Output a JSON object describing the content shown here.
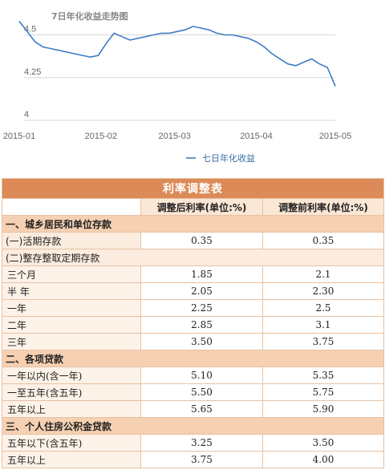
{
  "chart_data": {
    "type": "line",
    "title": "7日年化收益走势图",
    "legend": "七日年化收益",
    "legend_position": "bottom-center",
    "line_color": "#3f7cc4",
    "grid": "horizontal",
    "x_ticks": [
      "2015-01",
      "2015-02",
      "2015-03",
      "2015-04",
      "2015-05"
    ],
    "y_ticks": [
      "4",
      "4.25",
      "4.5"
    ],
    "ylim": [
      4.0,
      4.62
    ],
    "xlim": [
      "2015-01-01",
      "2015-05-01"
    ],
    "series": [
      {
        "x": [
          "2015-01-01",
          "2015-01-04",
          "2015-01-07",
          "2015-01-10",
          "2015-01-13",
          "2015-01-16",
          "2015-01-19",
          "2015-01-22",
          "2015-01-25",
          "2015-01-28",
          "2015-01-31",
          "2015-02-03",
          "2015-02-06",
          "2015-02-09",
          "2015-02-12",
          "2015-02-15",
          "2015-02-18",
          "2015-02-21",
          "2015-02-24",
          "2015-02-27",
          "2015-03-02",
          "2015-03-05",
          "2015-03-08",
          "2015-03-11",
          "2015-03-14",
          "2015-03-17",
          "2015-03-20",
          "2015-03-23",
          "2015-03-26",
          "2015-03-29",
          "2015-04-01",
          "2015-04-04",
          "2015-04-07",
          "2015-04-10",
          "2015-04-13",
          "2015-04-16",
          "2015-04-19",
          "2015-04-22",
          "2015-04-25",
          "2015-04-28",
          "2015-05-01"
        ],
        "values": [
          4.58,
          4.52,
          4.46,
          4.43,
          4.42,
          4.41,
          4.4,
          4.39,
          4.38,
          4.37,
          4.38,
          4.45,
          4.51,
          4.49,
          4.47,
          4.48,
          4.49,
          4.5,
          4.51,
          4.51,
          4.52,
          4.53,
          4.55,
          4.54,
          4.53,
          4.51,
          4.5,
          4.5,
          4.49,
          4.48,
          4.46,
          4.43,
          4.39,
          4.36,
          4.33,
          4.32,
          4.34,
          4.36,
          4.33,
          4.31,
          4.2
        ]
      }
    ]
  },
  "table": {
    "title": "利率调整表",
    "headers": [
      "调整后利率(单位:%)",
      "调整前利率(单位:%)"
    ],
    "rows": [
      {
        "kind": "section",
        "label": "一、城乡居民和单位存款"
      },
      {
        "kind": "sub",
        "label": "(一)活期存款",
        "after": "0.35",
        "before": "0.35"
      },
      {
        "kind": "sub-header",
        "label": "(二)整存整取定期存款"
      },
      {
        "kind": "item",
        "label": "三个月",
        "after": "1.85",
        "before": "2.1"
      },
      {
        "kind": "item",
        "label": "半 年",
        "after": "2.05",
        "before": "2.30"
      },
      {
        "kind": "item",
        "label": "一年",
        "after": "2.25",
        "before": "2.5"
      },
      {
        "kind": "item",
        "label": "二年",
        "after": "2.85",
        "before": "3.1"
      },
      {
        "kind": "item",
        "label": "三年",
        "after": "3.50",
        "before": "3.75"
      },
      {
        "kind": "section",
        "label": "二、各项贷款"
      },
      {
        "kind": "item",
        "label": "一年以内(含一年)",
        "after": "5.10",
        "before": "5.35"
      },
      {
        "kind": "item",
        "label": "一至五年(含五年)",
        "after": "5.50",
        "before": "5.75"
      },
      {
        "kind": "item",
        "label": "五年以上",
        "after": "5.65",
        "before": "5.90"
      },
      {
        "kind": "section",
        "label": "三、个人住房公积金贷款"
      },
      {
        "kind": "item",
        "label": "五年以下(含五年)",
        "after": "3.25",
        "before": "3.50"
      },
      {
        "kind": "item",
        "label": "五年以上",
        "after": "3.75",
        "before": "4.00"
      }
    ]
  }
}
